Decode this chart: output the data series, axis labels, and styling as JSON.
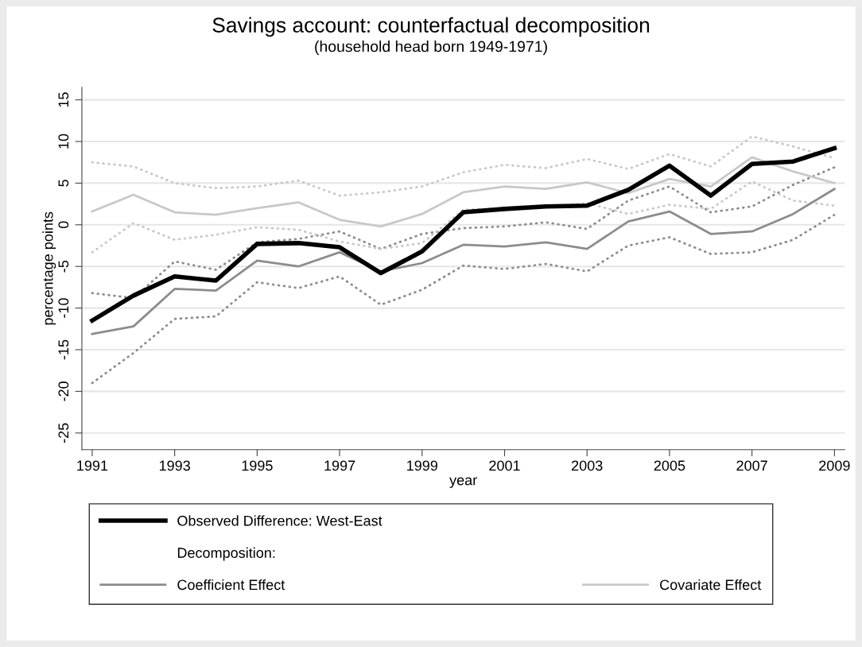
{
  "chart_data": {
    "type": "line",
    "title": "Savings account: counterfactual decomposition",
    "subtitle": "(household head born 1949-1971)",
    "xlabel": "year",
    "ylabel": "percentage points",
    "x": [
      1991,
      1992,
      1993,
      1994,
      1995,
      1996,
      1997,
      1998,
      1999,
      2000,
      2001,
      2002,
      2003,
      2004,
      2005,
      2006,
      2007,
      2008,
      2009
    ],
    "series": [
      {
        "name": "Observed Difference: West-East",
        "color": "#000000",
        "line_style": "solid",
        "values": [
          -11.5,
          -8.5,
          -6.2,
          -6.7,
          -2.3,
          -2.2,
          -2.7,
          -5.8,
          -3.2,
          1.5,
          1.9,
          2.2,
          2.3,
          4.2,
          7.1,
          3.5,
          7.3,
          7.6,
          9.2
        ]
      },
      {
        "name": "Coefficient Effect",
        "color": "#8c8c8c",
        "line_style": "solid",
        "values": [
          -13.1,
          -12.2,
          -7.7,
          -7.9,
          -4.3,
          -5.0,
          -3.3,
          -5.6,
          -4.6,
          -2.4,
          -2.6,
          -2.1,
          -2.9,
          0.4,
          1.6,
          -1.1,
          -0.8,
          1.3,
          4.3
        ]
      },
      {
        "name": "Covariate Effect",
        "color": "#c8c8c8",
        "line_style": "solid",
        "values": [
          1.6,
          3.6,
          1.5,
          1.2,
          2.0,
          2.7,
          0.6,
          -0.2,
          1.3,
          3.9,
          4.6,
          4.3,
          5.1,
          3.8,
          5.5,
          4.6,
          8.1,
          6.4,
          5.0
        ]
      },
      {
        "color": "#8c8c8c",
        "line_style": "dotted",
        "values": [
          -8.2,
          -8.8,
          -4.4,
          -5.4,
          -2.1,
          -1.7,
          -0.8,
          -2.9,
          -1.1,
          -0.4,
          -0.2,
          0.3,
          -0.5,
          2.9,
          4.6,
          1.5,
          2.2,
          4.8,
          6.9
        ]
      },
      {
        "color": "#8c8c8c",
        "line_style": "dotted",
        "values": [
          -19.0,
          -15.4,
          -11.3,
          -11.0,
          -6.9,
          -7.6,
          -6.2,
          -9.6,
          -7.8,
          -4.9,
          -5.3,
          -4.7,
          -5.6,
          -2.5,
          -1.5,
          -3.5,
          -3.3,
          -1.8,
          1.2
        ]
      },
      {
        "color": "#c8c8c8",
        "line_style": "dotted",
        "values": [
          7.5,
          7.0,
          5.0,
          4.4,
          4.6,
          5.3,
          3.5,
          3.9,
          4.6,
          6.3,
          7.2,
          6.8,
          7.9,
          6.7,
          8.5,
          7.0,
          10.6,
          9.4,
          8.0
        ]
      },
      {
        "color": "#c8c8c8",
        "line_style": "dotted",
        "values": [
          -3.3,
          0.2,
          -1.8,
          -1.2,
          -0.3,
          -0.6,
          -2.0,
          -2.9,
          -2.2,
          1.8,
          2.0,
          2.1,
          2.6,
          1.3,
          2.4,
          1.9,
          5.2,
          2.9,
          2.3
        ]
      }
    ],
    "annotations": [
      "Decomposition:"
    ],
    "xlim": [
      1990.75,
      2009.25
    ],
    "xticks": [
      1991,
      1993,
      1995,
      1997,
      1999,
      2001,
      2003,
      2005,
      2007,
      2009
    ],
    "ylim": [
      -27,
      16.5
    ],
    "yticks": [
      -25,
      -20,
      -15,
      -10,
      -5,
      0,
      5,
      10,
      15
    ],
    "grid": "y",
    "legend": "bottom",
    "marker": "none"
  }
}
